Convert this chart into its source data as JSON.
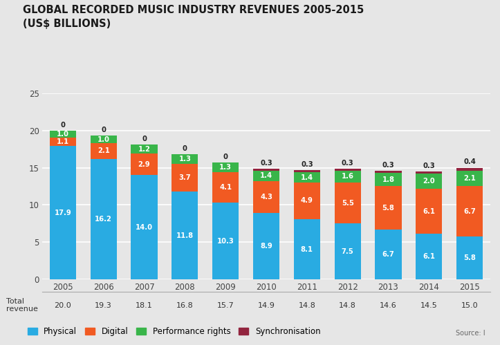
{
  "title_line1": "GLOBAL RECORDED MUSIC INDUSTRY REVENUES 2005-2015",
  "title_line2": "(US$ BILLIONS)",
  "years": [
    "2005",
    "2006",
    "2007",
    "2008",
    "2009",
    "2010",
    "2011",
    "2012",
    "2013",
    "2014",
    "2015"
  ],
  "physical": [
    17.9,
    16.2,
    14.0,
    11.8,
    10.3,
    8.9,
    8.1,
    7.5,
    6.7,
    6.1,
    5.8
  ],
  "digital": [
    1.1,
    2.1,
    2.9,
    3.7,
    4.1,
    4.3,
    4.9,
    5.5,
    5.8,
    6.1,
    6.7
  ],
  "performance_rights": [
    1.0,
    1.0,
    1.2,
    1.3,
    1.3,
    1.4,
    1.4,
    1.6,
    1.8,
    2.0,
    2.1
  ],
  "synchronisation": [
    0.0,
    0.0,
    0.0,
    0.0,
    0.0,
    0.3,
    0.3,
    0.3,
    0.3,
    0.3,
    0.4
  ],
  "total_revenue": [
    20.0,
    19.3,
    18.1,
    16.8,
    15.7,
    14.9,
    14.8,
    14.8,
    14.6,
    14.5,
    15.0
  ],
  "color_physical": "#29abe2",
  "color_digital": "#f15a22",
  "color_performance": "#39b54a",
  "color_synchronisation": "#92243e",
  "background_color": "#e6e6e6",
  "ylim": [
    0,
    25
  ],
  "yticks": [
    0,
    5,
    10,
    15,
    20,
    25
  ]
}
